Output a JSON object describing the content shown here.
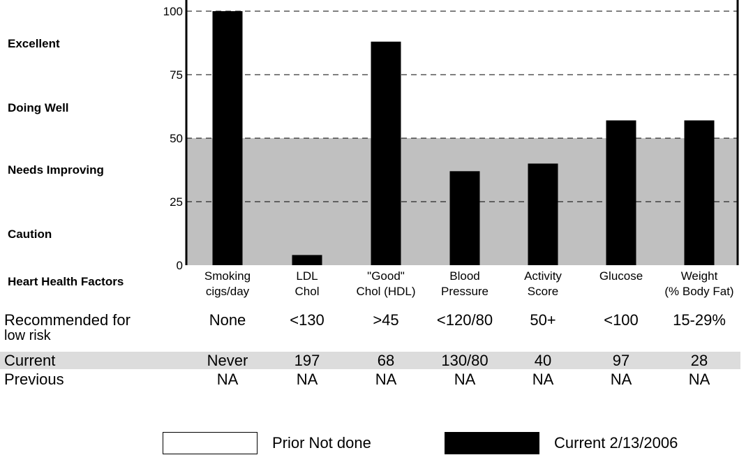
{
  "chart_data": {
    "type": "bar",
    "categories": [
      {
        "line1": "Smoking",
        "line2": "cigs/day"
      },
      {
        "line1": "LDL",
        "line2": "Chol"
      },
      {
        "line1": "\"Good\"",
        "line2": "Chol (HDL)"
      },
      {
        "line1": "Blood",
        "line2": "Pressure"
      },
      {
        "line1": "Activity",
        "line2": "Score"
      },
      {
        "line1": "Glucose",
        "line2": ""
      },
      {
        "line1": "Weight",
        "line2": "(% Body Fat)"
      }
    ],
    "values": [
      100,
      4,
      88,
      37,
      40,
      57,
      57
    ],
    "ylim": [
      0,
      100
    ],
    "yticks": [
      "0",
      "25",
      "50",
      "75",
      "100"
    ],
    "grid": "dashed at 25, 50, 75, 100",
    "shaded_region": [
      0,
      50
    ],
    "bar_color": "#000000",
    "shade_color": "#c0c0c0",
    "rating_labels": [
      "Excellent",
      "Doing Well",
      "Needs Improving",
      "Caution"
    ],
    "factors_label": "Heart Health Factors"
  },
  "table": {
    "rows": [
      {
        "label": "Recommended for",
        "label2": "low risk",
        "values": [
          "None",
          "<130",
          ">45",
          "<120/80",
          "50+",
          "<100",
          "15-29%"
        ]
      },
      {
        "label": "Current",
        "values": [
          "Never",
          "197",
          "68",
          "130/80",
          "40",
          "97",
          "28"
        ]
      },
      {
        "label": "Previous",
        "values": [
          "NA",
          "NA",
          "NA",
          "NA",
          "NA",
          "NA",
          "NA"
        ]
      }
    ]
  },
  "legend": {
    "prior_label": "Prior Not done",
    "current_label": "Current 2/13/2006"
  },
  "colors": {
    "current_row_bg": "#dcdcdc"
  }
}
